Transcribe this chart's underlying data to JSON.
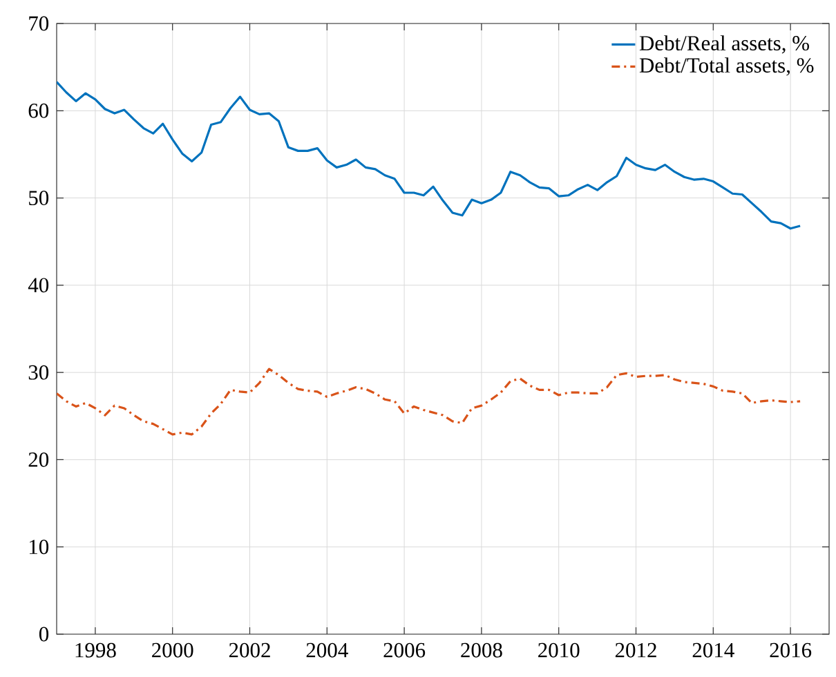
{
  "chart_data": {
    "type": "line",
    "x": [
      1997.0,
      1997.25,
      1997.5,
      1997.75,
      1998.0,
      1998.25,
      1998.5,
      1998.75,
      1999.0,
      1999.25,
      1999.5,
      1999.75,
      2000.0,
      2000.25,
      2000.5,
      2000.75,
      2001.0,
      2001.25,
      2001.5,
      2001.75,
      2002.0,
      2002.25,
      2002.5,
      2002.75,
      2003.0,
      2003.25,
      2003.5,
      2003.75,
      2004.0,
      2004.25,
      2004.5,
      2004.75,
      2005.0,
      2005.25,
      2005.5,
      2005.75,
      2006.0,
      2006.25,
      2006.5,
      2006.75,
      2007.0,
      2007.25,
      2007.5,
      2007.75,
      2008.0,
      2008.25,
      2008.5,
      2008.75,
      2009.0,
      2009.25,
      2009.5,
      2009.75,
      2010.0,
      2010.25,
      2010.5,
      2010.75,
      2011.0,
      2011.25,
      2011.5,
      2011.75,
      2012.0,
      2012.25,
      2012.5,
      2012.75,
      2013.0,
      2013.25,
      2013.5,
      2013.75,
      2014.0,
      2014.25,
      2014.5,
      2014.75,
      2015.0,
      2015.25,
      2015.5,
      2015.75,
      2016.0,
      2016.25
    ],
    "series": [
      {
        "name": "Debt/Real assets, %",
        "color": "#0072bd",
        "line_style": "solid",
        "values": [
          63.3,
          62.1,
          61.1,
          62.0,
          61.3,
          60.2,
          59.7,
          60.1,
          59.0,
          58.0,
          57.4,
          58.5,
          56.7,
          55.1,
          54.2,
          55.2,
          58.4,
          58.7,
          60.3,
          61.6,
          60.1,
          59.6,
          59.7,
          58.8,
          55.8,
          55.4,
          55.4,
          55.7,
          54.3,
          53.5,
          53.8,
          54.4,
          53.5,
          53.3,
          52.6,
          52.2,
          50.6,
          50.6,
          50.3,
          51.3,
          49.7,
          48.3,
          48.0,
          49.8,
          49.4,
          49.8,
          50.6,
          53.0,
          52.6,
          51.8,
          51.2,
          51.1,
          50.2,
          50.3,
          51.0,
          51.5,
          50.9,
          51.8,
          52.5,
          54.6,
          53.8,
          53.4,
          53.2,
          53.8,
          53.0,
          52.4,
          52.1,
          52.2,
          51.9,
          51.2,
          50.5,
          50.4,
          49.4,
          48.4,
          47.3,
          47.1,
          46.5,
          46.8
        ]
      },
      {
        "name": "Debt/Total assets, %",
        "color": "#d95319",
        "line_style": "dashdot",
        "values": [
          27.6,
          26.7,
          26.1,
          26.5,
          25.9,
          25.1,
          26.2,
          25.9,
          25.1,
          24.4,
          24.1,
          23.5,
          22.9,
          23.1,
          22.9,
          23.8,
          25.3,
          26.4,
          28.0,
          27.8,
          27.7,
          28.8,
          30.4,
          29.7,
          28.8,
          28.1,
          27.9,
          27.8,
          27.2,
          27.6,
          27.9,
          28.3,
          28.1,
          27.6,
          26.9,
          26.7,
          25.3,
          26.1,
          25.7,
          25.4,
          25.1,
          24.4,
          24.2,
          25.9,
          26.2,
          26.9,
          27.7,
          29.0,
          29.3,
          28.5,
          28.0,
          28.0,
          27.4,
          27.7,
          27.7,
          27.6,
          27.6,
          28.3,
          29.7,
          29.9,
          29.5,
          29.6,
          29.6,
          29.7,
          29.2,
          28.9,
          28.8,
          28.7,
          28.4,
          27.9,
          27.8,
          27.6,
          26.5,
          26.7,
          26.8,
          26.7,
          26.6,
          26.7
        ]
      }
    ],
    "xlim": [
      1997,
      2017
    ],
    "ylim": [
      0,
      70
    ],
    "xticks": [
      1998,
      2000,
      2002,
      2004,
      2006,
      2008,
      2010,
      2012,
      2014,
      2016
    ],
    "yticks": [
      0,
      10,
      20,
      30,
      40,
      50,
      60,
      70
    ],
    "grid": true,
    "legend": "top right",
    "marker": "none"
  }
}
